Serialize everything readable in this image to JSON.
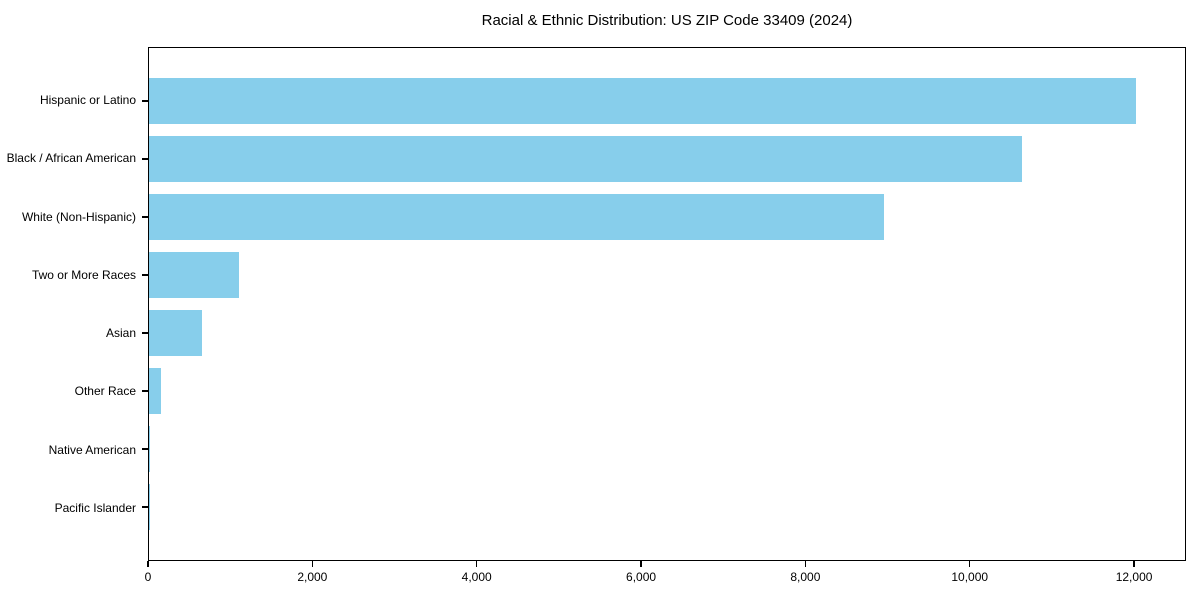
{
  "chart_data": {
    "type": "bar",
    "orientation": "horizontal",
    "title": "Racial & Ethnic Distribution: US ZIP Code 33409 (2024)",
    "categories": [
      "Hispanic or Latino",
      "Black / African American",
      "White (Non-Hispanic)",
      "Two or More Races",
      "Asian",
      "Other Race",
      "Native American",
      "Pacific Islander"
    ],
    "values": [
      12030,
      10650,
      8960,
      1100,
      650,
      150,
      15,
      6
    ],
    "xlabel": "",
    "ylabel": "",
    "xlim": [
      0,
      12632
    ],
    "x_ticks": [
      0,
      2000,
      4000,
      6000,
      8000,
      10000,
      12000
    ],
    "x_tick_labels": [
      "0",
      "2,000",
      "4,000",
      "6,000",
      "8,000",
      "10,000",
      "12,000"
    ],
    "bar_color": "#87CEEB",
    "axis_color": "#000000",
    "grid": false,
    "legend": null
  }
}
